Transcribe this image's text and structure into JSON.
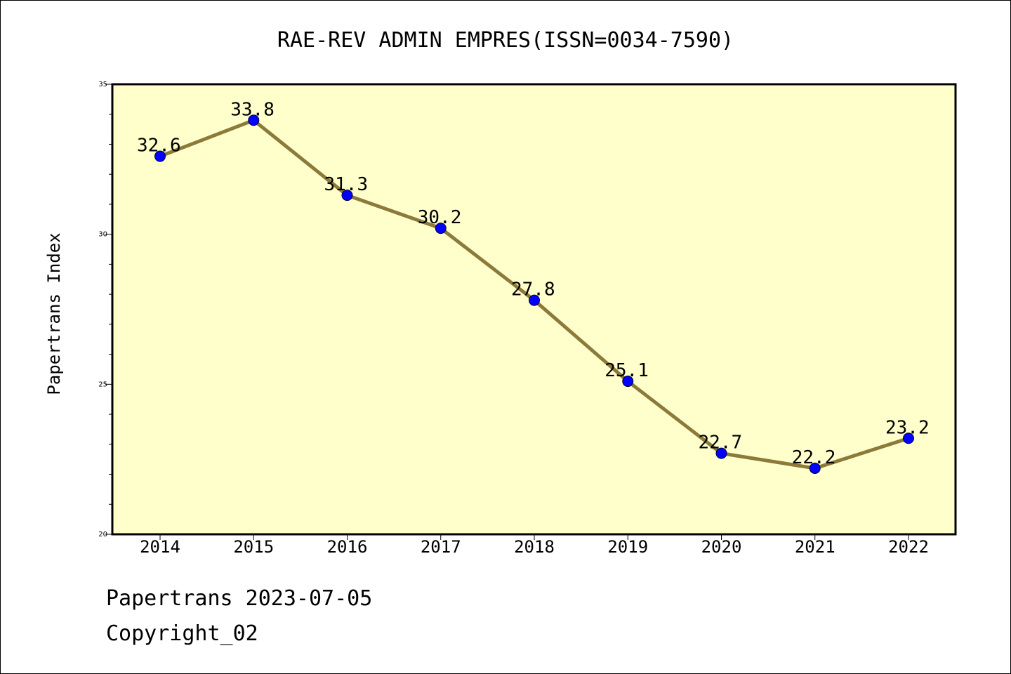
{
  "chart_data": {
    "type": "line",
    "title": "RAE-REV ADMIN EMPRES(ISSN=0034-7590)",
    "xlabel": "",
    "ylabel": "Papertrans Index",
    "categories": [
      "2014",
      "2015",
      "2016",
      "2017",
      "2018",
      "2019",
      "2020",
      "2021",
      "2022"
    ],
    "series": [
      {
        "values": [
          32.6,
          33.8,
          31.3,
          30.2,
          27.8,
          25.1,
          22.7,
          22.2,
          23.2
        ],
        "labels": [
          "32.6",
          "33.8",
          "31.3",
          "30.2",
          "27.8",
          "25.1",
          "22.7",
          "22.2",
          "23.2"
        ]
      }
    ],
    "ylim": [
      20,
      35
    ],
    "yticks": [
      20,
      25,
      30,
      35
    ],
    "ytick_labels": [
      "20",
      "25",
      "30",
      "35"
    ],
    "grid": false,
    "colors": {
      "plot_background": "#ffffcc",
      "line": "#8b7a3a",
      "marker": "#0000ff"
    }
  },
  "footer": {
    "source": "Papertrans 2023-07-05",
    "copyright": "Copyright_02"
  }
}
